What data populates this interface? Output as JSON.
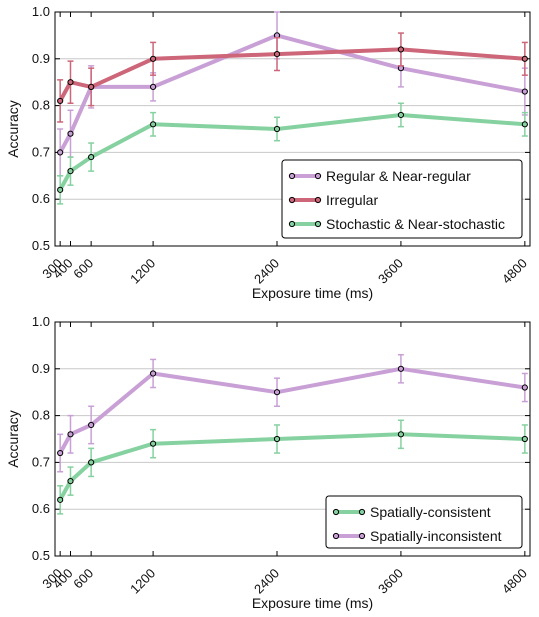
{
  "chart_data": [
    {
      "type": "line",
      "xlabel": "Exposure time (ms)",
      "ylabel": "Accuracy",
      "x": [
        300,
        400,
        600,
        1200,
        2400,
        3600,
        4800
      ],
      "xticks": [
        300,
        400,
        600,
        1200,
        2400,
        3600,
        4800
      ],
      "xtick_labels": [
        "300",
        "400",
        "600",
        "1200",
        "2400",
        "3600",
        "4800"
      ],
      "xlim": [
        250,
        4850
      ],
      "ylim": [
        0.5,
        1.0
      ],
      "yticks": [
        0.5,
        0.6,
        0.7,
        0.8,
        0.9,
        1.0
      ],
      "ytick_labels": [
        "0.5",
        "0.6",
        "0.7",
        "0.8",
        "0.9",
        "1.0"
      ],
      "grid": "horizontal",
      "legend_position": "lower-right",
      "series": [
        {
          "name": "Regular & Near-regular",
          "color": "#c9a0d6",
          "values": [
            0.7,
            0.74,
            0.84,
            0.84,
            0.95,
            0.88,
            0.83
          ],
          "errors": [
            0.05,
            0.05,
            0.045,
            0.03,
            0.05,
            0.04,
            0.05
          ]
        },
        {
          "name": "Irregular",
          "color": "#cc6678",
          "values": [
            0.81,
            0.85,
            0.84,
            0.9,
            0.91,
            0.92,
            0.9
          ],
          "errors": [
            0.045,
            0.045,
            0.04,
            0.035,
            0.035,
            0.035,
            0.035
          ]
        },
        {
          "name": "Stochastic & Near-stochastic",
          "color": "#86d1a0",
          "values": [
            0.62,
            0.66,
            0.69,
            0.76,
            0.75,
            0.78,
            0.76
          ],
          "errors": [
            0.03,
            0.03,
            0.03,
            0.025,
            0.025,
            0.025,
            0.025
          ]
        }
      ]
    },
    {
      "type": "line",
      "xlabel": "Exposure time (ms)",
      "ylabel": "Accuracy",
      "x": [
        300,
        400,
        600,
        1200,
        2400,
        3600,
        4800
      ],
      "xticks": [
        300,
        400,
        600,
        1200,
        2400,
        3600,
        4800
      ],
      "xtick_labels": [
        "300",
        "400",
        "600",
        "1200",
        "2400",
        "3600",
        "4800"
      ],
      "xlim": [
        250,
        4850
      ],
      "ylim": [
        0.5,
        1.0
      ],
      "yticks": [
        0.5,
        0.6,
        0.7,
        0.8,
        0.9,
        1.0
      ],
      "ytick_labels": [
        "0.5",
        "0.6",
        "0.7",
        "0.8",
        "0.9",
        "1.0"
      ],
      "grid": "horizontal",
      "legend_position": "lower-right",
      "series": [
        {
          "name": "Spatially-consistent",
          "color": "#86d1a0",
          "values": [
            0.62,
            0.66,
            0.7,
            0.74,
            0.75,
            0.76,
            0.75
          ],
          "errors": [
            0.03,
            0.03,
            0.03,
            0.03,
            0.03,
            0.03,
            0.03
          ]
        },
        {
          "name": "Spatially-inconsistent",
          "color": "#c9a0d6",
          "values": [
            0.72,
            0.76,
            0.78,
            0.89,
            0.85,
            0.9,
            0.86
          ],
          "errors": [
            0.04,
            0.04,
            0.04,
            0.03,
            0.03,
            0.03,
            0.03
          ]
        }
      ]
    }
  ]
}
